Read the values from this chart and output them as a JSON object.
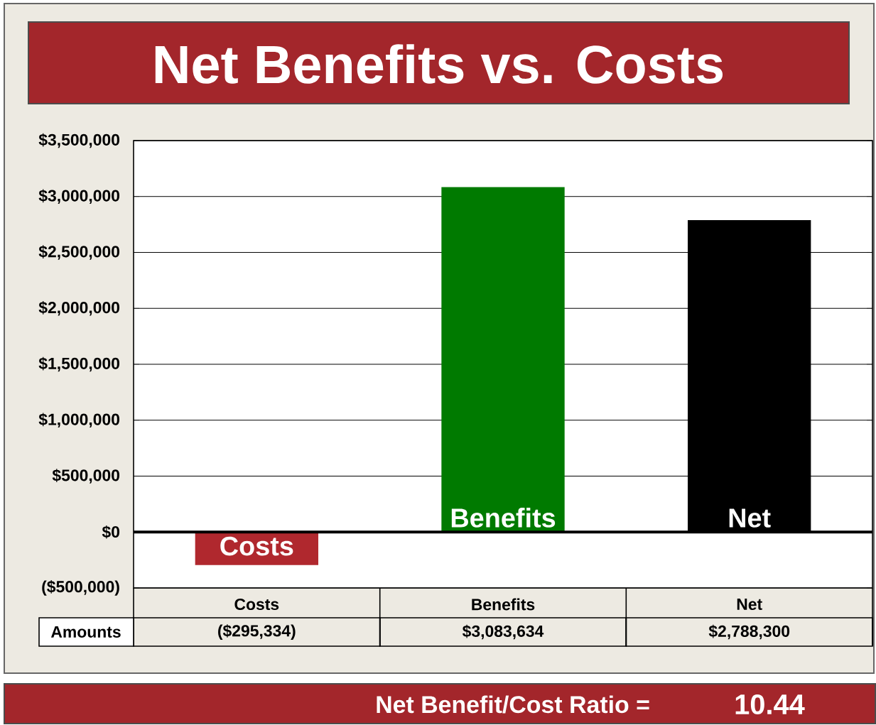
{
  "chart_data": {
    "type": "bar",
    "title": "Net Benefits vs. Costs",
    "categories": [
      "Costs",
      "Benefits",
      "Net"
    ],
    "values": [
      -295334,
      3083634,
      2788300
    ],
    "colors": [
      "#b0282e",
      "#007a00",
      "#000000"
    ],
    "value_labels": [
      "($295,334)",
      "$3,083,634",
      "$2,788,300"
    ],
    "ylim": [
      -500000,
      3500000
    ],
    "yticks": [
      {
        "value": -500000,
        "label": "($500,000)"
      },
      {
        "value": 0,
        "label": "$0"
      },
      {
        "value": 500000,
        "label": "$500,000"
      },
      {
        "value": 1000000,
        "label": "$1,000,000"
      },
      {
        "value": 1500000,
        "label": "$1,500,000"
      },
      {
        "value": 2000000,
        "label": "$2,000,000"
      },
      {
        "value": 2500000,
        "label": "$2,500,000"
      },
      {
        "value": 3000000,
        "label": "$3,000,000"
      },
      {
        "value": 3500000,
        "label": "$3,500,000"
      }
    ],
    "grid": "y",
    "tick_labels": "y",
    "annotations": [
      "Amounts",
      "Net Benefit/Cost Ratio =",
      "10.44"
    ]
  }
}
